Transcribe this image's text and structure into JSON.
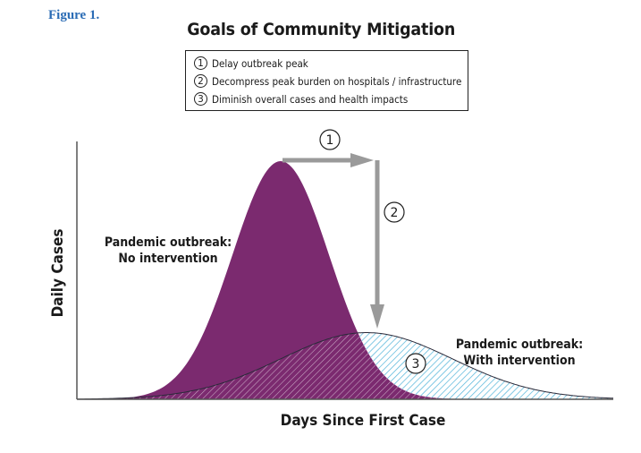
{
  "figure_label": "Figure 1.",
  "chart_data": {
    "type": "area",
    "title": "Goals of Community Mitigation",
    "xlabel": "Days Since First Case",
    "ylabel": "Daily Cases",
    "xlim": [
      0,
      100
    ],
    "ylim": [
      0,
      100
    ],
    "grid": false,
    "goals": [
      {
        "num": "1",
        "text": "Delay outbreak peak"
      },
      {
        "num": "2",
        "text": "Decompress peak burden on hospitals / infrastructure"
      },
      {
        "num": "3",
        "text": "Diminish overall cases and health impacts"
      }
    ],
    "series": [
      {
        "name": "Pandemic outbreak: No intervention",
        "label_lines": [
          "Pandemic outbreak:",
          "No intervention"
        ],
        "color": "#7b2a6f",
        "fill": "solid",
        "peak_x": 38,
        "peak_y": 100,
        "spread": 9,
        "x": [
          0,
          10,
          20,
          28,
          33,
          38,
          43,
          48,
          53,
          58,
          65,
          75
        ],
        "values": [
          0,
          1,
          10,
          54,
          86,
          100,
          86,
          54,
          24,
          8,
          1,
          0
        ]
      },
      {
        "name": "Pandemic outbreak: With intervention",
        "label_lines": [
          "Pandemic outbreak:",
          "With intervention"
        ],
        "color": "#4fb3d9",
        "fill": "hatched",
        "peak_x": 54,
        "peak_y": 28,
        "spread": 16,
        "x": [
          20,
          30,
          40,
          46,
          54,
          62,
          70,
          80,
          90,
          100
        ],
        "values": [
          1,
          9,
          19,
          25,
          28,
          25,
          16,
          6,
          1,
          0
        ]
      }
    ],
    "annotations": [
      {
        "id": "1",
        "meaning": "Delay outbreak peak"
      },
      {
        "id": "2",
        "meaning": "Decompress peak burden on hospitals / infrastructure"
      },
      {
        "id": "3",
        "meaning": "Diminish overall cases and health impacts"
      }
    ],
    "colors": {
      "no_intervention": "#7b2a6f",
      "with_intervention_hatch": "#4fb3d9",
      "arrow": "#9a9a9a",
      "axis": "#555555"
    }
  }
}
